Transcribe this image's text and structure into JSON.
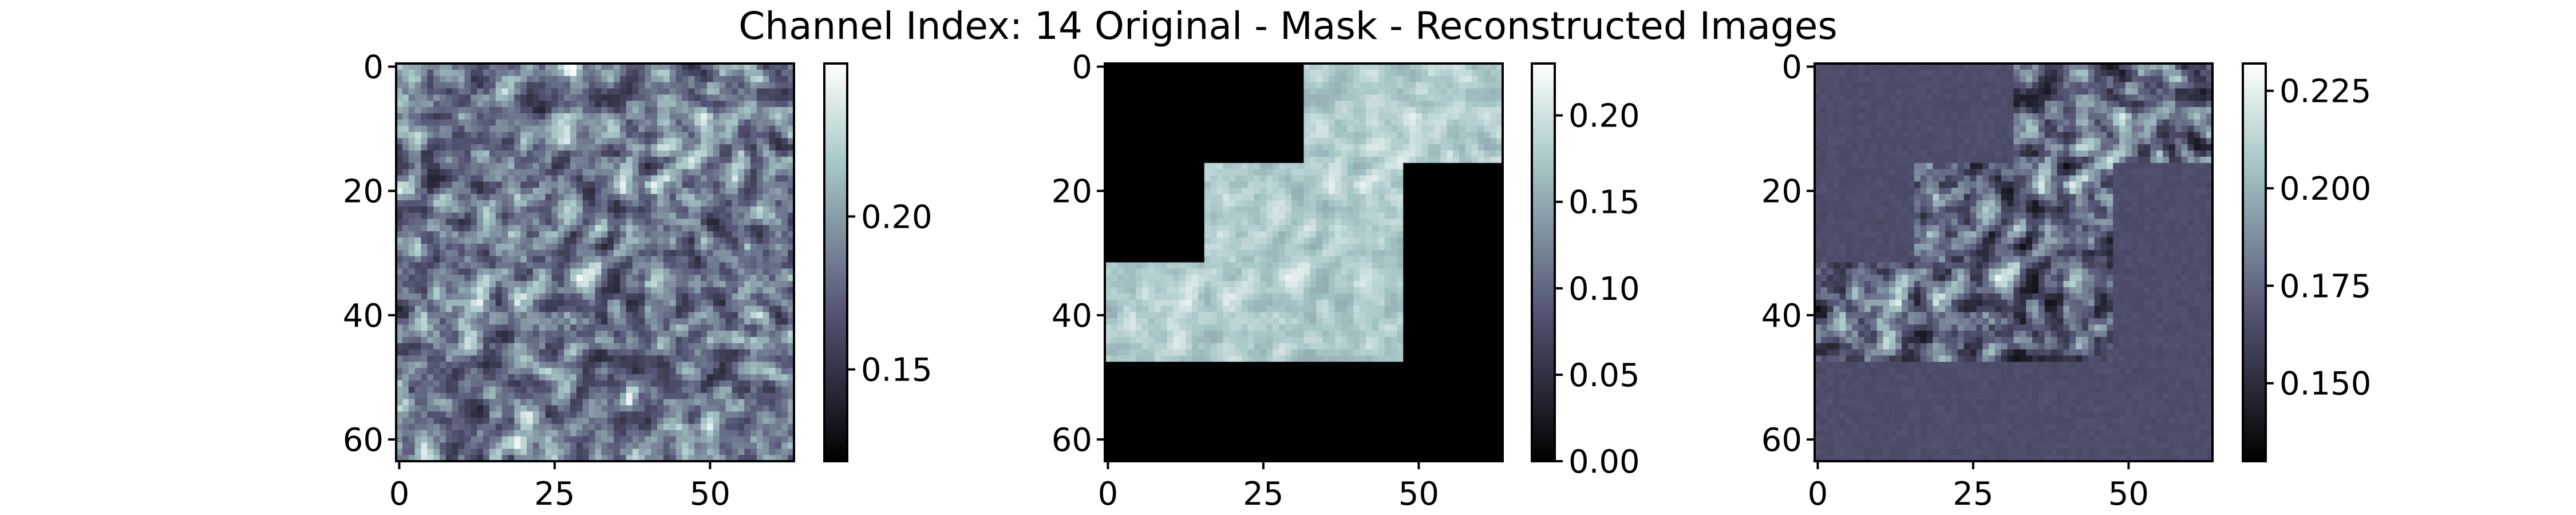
{
  "title": "Channel Index: 14 Original - Mask - Reconstructed Images",
  "chart_data": [
    {
      "type": "heatmap",
      "panel": "original",
      "grid_size": [
        64,
        64
      ],
      "xticks": [
        0,
        25,
        50
      ],
      "yticks": [
        0,
        20,
        40,
        60
      ],
      "colormap": "bone",
      "colorbar": {
        "min": 0.12,
        "max": 0.25,
        "ticks": [
          0.15,
          0.2
        ],
        "tick_labels": [
          "0.15",
          "0.20"
        ]
      },
      "value_range": [
        0.12,
        0.25
      ],
      "mask_region": null
    },
    {
      "type": "heatmap",
      "panel": "mask",
      "grid_size": [
        64,
        64
      ],
      "xticks": [
        0,
        25,
        50
      ],
      "yticks": [
        0,
        20,
        40,
        60
      ],
      "colormap": "bone",
      "colorbar": {
        "min": 0.0,
        "max": 0.23,
        "ticks": [
          0.0,
          0.05,
          0.1,
          0.15,
          0.2
        ],
        "tick_labels": [
          "0.00",
          "0.05",
          "0.10",
          "0.15",
          "0.20"
        ]
      },
      "value_range": [
        0.0,
        0.23
      ],
      "visible_blocks": [
        {
          "x": [
            32,
            64
          ],
          "y": [
            0,
            16
          ]
        },
        {
          "x": [
            16,
            48
          ],
          "y": [
            16,
            32
          ]
        },
        {
          "x": [
            0,
            48
          ],
          "y": [
            32,
            48
          ]
        }
      ],
      "masked_value": 0.0
    },
    {
      "type": "heatmap",
      "panel": "reconstructed",
      "grid_size": [
        64,
        64
      ],
      "xticks": [
        0,
        25,
        50
      ],
      "yticks": [
        0,
        20,
        40,
        60
      ],
      "colormap": "bone",
      "colorbar": {
        "min": 0.13,
        "max": 0.232,
        "ticks": [
          0.15,
          0.175,
          0.2,
          0.225
        ],
        "tick_labels": [
          "0.150",
          "0.175",
          "0.200",
          "0.225"
        ]
      },
      "value_range": [
        0.13,
        0.232
      ],
      "visible_blocks": [
        {
          "x": [
            32,
            64
          ],
          "y": [
            0,
            16
          ]
        },
        {
          "x": [
            16,
            48
          ],
          "y": [
            16,
            32
          ]
        },
        {
          "x": [
            0,
            48
          ],
          "y": [
            32,
            48
          ]
        }
      ],
      "reconstructed_fill_value": 0.165
    }
  ]
}
